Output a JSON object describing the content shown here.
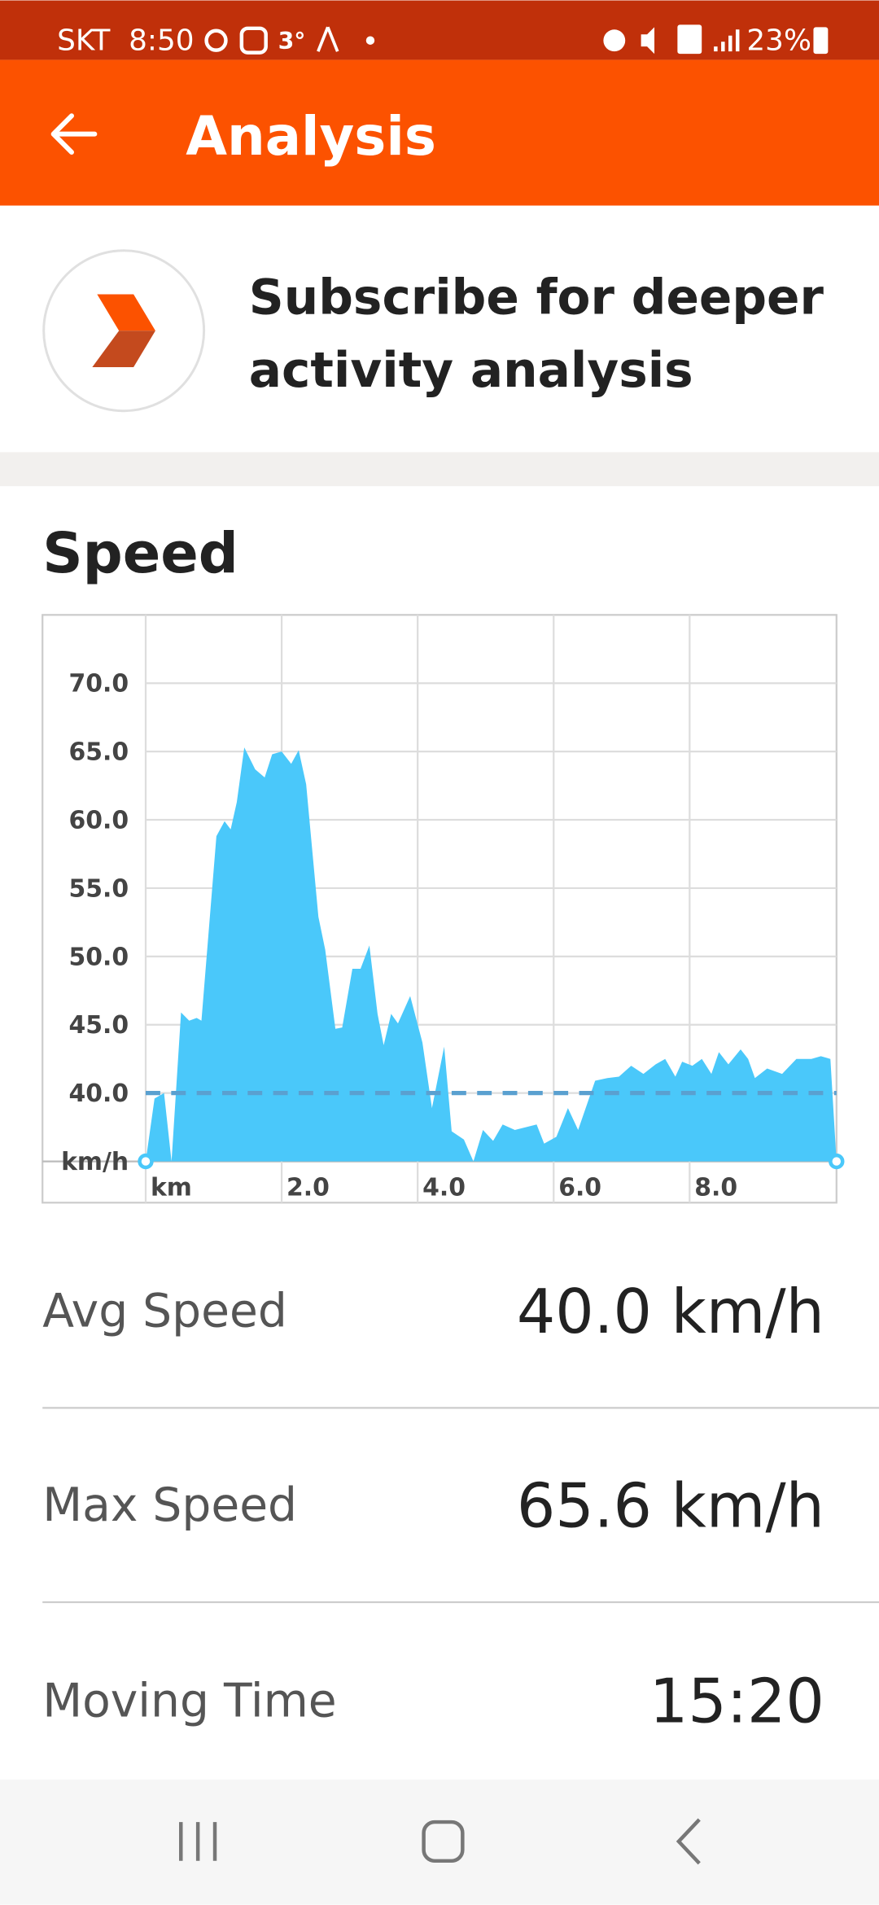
{
  "status_bar": {
    "carrier": "SKT",
    "time": "8:50",
    "temperature": "3°",
    "battery": "23%"
  },
  "app_bar": {
    "title": "Analysis"
  },
  "banner": {
    "lines": [
      "Subscribe for deeper",
      "activity analysis"
    ]
  },
  "section": {
    "title": "Speed"
  },
  "chart_data": {
    "type": "area",
    "x": [
      0,
      0.13,
      0.27,
      0.38,
      0.52,
      0.64,
      0.75,
      0.82,
      1.04,
      1.16,
      1.25,
      1.34,
      1.45,
      1.61,
      1.75,
      1.86,
      2.0,
      2.14,
      2.25,
      2.36,
      2.54,
      2.64,
      2.79,
      2.89,
      3.04,
      3.16,
      3.29,
      3.41,
      3.5,
      3.61,
      3.71,
      3.89,
      4.07,
      4.21,
      4.39,
      4.5,
      4.68,
      4.82,
      4.96,
      5.11,
      5.25,
      5.43,
      5.75,
      5.86,
      6.04,
      6.21,
      6.36,
      6.61,
      6.79,
      6.96,
      7.14,
      7.32,
      7.5,
      7.64,
      7.79,
      7.89,
      8.04,
      8.18,
      8.32,
      8.43,
      8.57,
      8.75,
      8.86,
      8.96,
      9.14,
      9.36,
      9.57,
      9.79,
      9.93,
      10.07,
      10.16
    ],
    "series": [
      {
        "color": "#4ac8fa",
        "values": [
          35,
          39.6,
          40,
          35,
          45.9,
          45.3,
          45.5,
          45.3,
          58.8,
          59.9,
          59.3,
          61.3,
          65.3,
          63.7,
          63.1,
          64.8,
          65.0,
          64.1,
          65.1,
          62.6,
          52.9,
          50.5,
          44.7,
          44.8,
          49.1,
          49.1,
          50.8,
          45.8,
          43.5,
          45.8,
          45.1,
          47.1,
          43.7,
          38.9,
          43.4,
          37.2,
          36.6,
          35,
          37.3,
          36.5,
          37.7,
          37.3,
          37.7,
          36.3,
          36.8,
          38.9,
          37.3,
          40.9,
          41.1,
          41.2,
          42,
          41.4,
          42.1,
          42.5,
          41.2,
          42.3,
          42,
          42.5,
          41.4,
          43,
          42.1,
          43.2,
          42.5,
          41.1,
          41.8,
          41.4,
          42.5,
          42.5,
          42.7,
          42.5,
          35
        ]
      }
    ],
    "reference_line": 40,
    "xlim": [
      0,
      10.16
    ],
    "ylim": [
      35,
      75
    ],
    "xticks": [
      {
        "value": 0,
        "label": "km"
      },
      {
        "value": 2,
        "label": "2.0"
      },
      {
        "value": 4,
        "label": "4.0"
      },
      {
        "value": 6,
        "label": "6.0"
      },
      {
        "value": 8,
        "label": "8.0"
      }
    ],
    "yticks": [
      {
        "value": 35,
        "label": "km/h"
      },
      {
        "value": 40,
        "label": "40.0"
      },
      {
        "value": 45,
        "label": "45.0"
      },
      {
        "value": 50,
        "label": "50.0"
      },
      {
        "value": 55,
        "label": "55.0"
      },
      {
        "value": 60,
        "label": "60.0"
      },
      {
        "value": 65,
        "label": "65.0"
      },
      {
        "value": 70,
        "label": "70.0"
      }
    ],
    "grid": true
  },
  "stats": [
    {
      "label": "Avg Speed",
      "value": "40.0 km/h"
    },
    {
      "label": "Max Speed",
      "value": "65.6 km/h"
    },
    {
      "label": "Moving Time",
      "value": "15:20"
    }
  ]
}
